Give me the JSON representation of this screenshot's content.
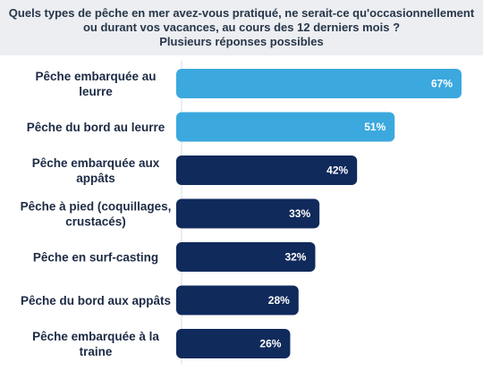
{
  "title": "Quels types de pêche en mer avez-vous pratiqué, ne serait-ce qu'occasionnellement ou durant vos vacances, au cours des 12 derniers mois ?",
  "subtitle": "Plusieurs réponses possibles",
  "chart_data": {
    "type": "bar",
    "orientation": "horizontal",
    "categories": [
      [
        "Pêche embarquée au",
        "leurre"
      ],
      [
        "Pêche du bord au leurre"
      ],
      [
        "Pêche embarquée aux",
        "appâts"
      ],
      [
        "Pêche à pied (coquillages,",
        "crustacés)"
      ],
      [
        "Pêche en surf-casting"
      ],
      [
        "Pêche du bord aux appâts"
      ],
      [
        "Pêche embarquée à la",
        "traine"
      ]
    ],
    "values": [
      67,
      51,
      42,
      33,
      32,
      28,
      26
    ],
    "value_labels": [
      "67%",
      "51%",
      "42%",
      "33%",
      "32%",
      "28%",
      "26%"
    ],
    "unit": "%",
    "xlim": [
      0,
      67
    ],
    "grid": false,
    "colors": {
      "highlight": "#3ba8de",
      "default": "#102a5c",
      "header_bg": "#eceef1",
      "text": "#1c2a44"
    },
    "highlight_count": 2
  }
}
